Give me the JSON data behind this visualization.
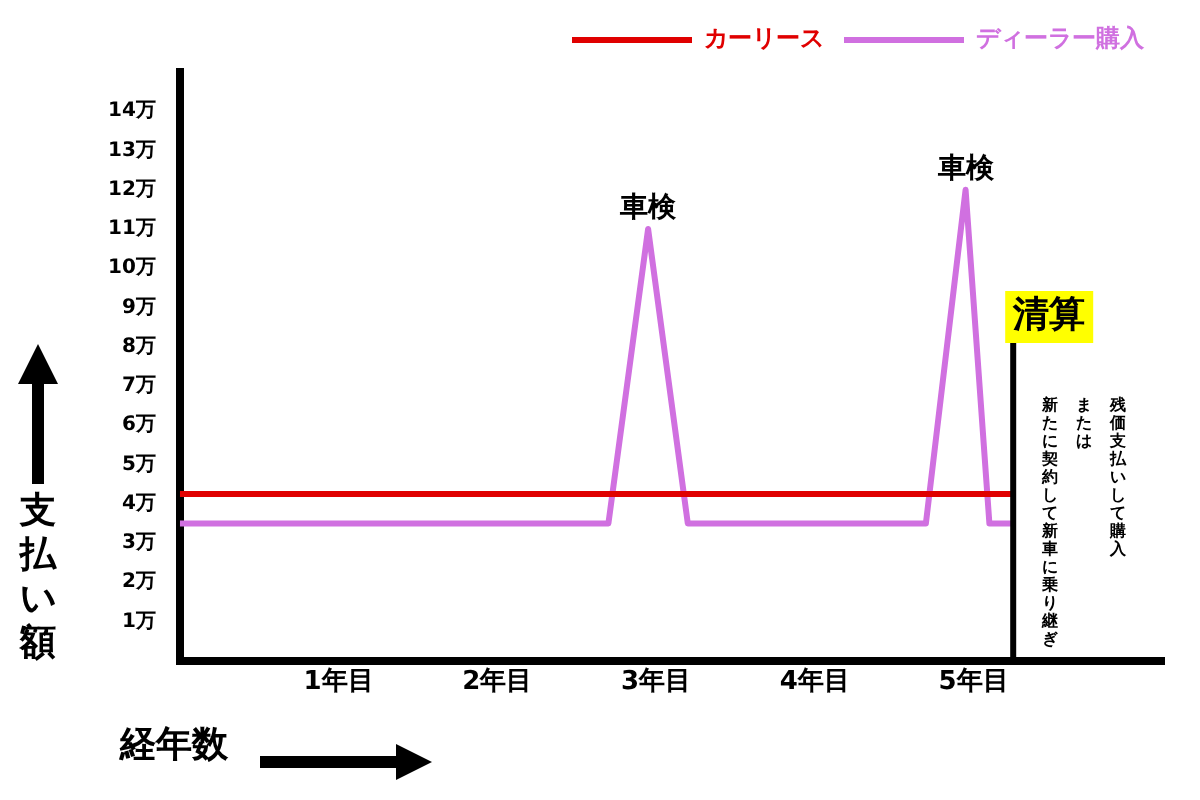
{
  "chart_data": {
    "type": "line",
    "xlabel": "経年数",
    "ylabel": "支払い額",
    "x": [
      0,
      5.25
    ],
    "series": [
      {
        "name": "カーリース",
        "color": "#e00000",
        "values": [
          4.25,
          4.25
        ]
      },
      {
        "name": "ディーラー購入",
        "color": "#d070e0",
        "x": [
          0,
          2.7,
          2.95,
          3.2,
          4.7,
          4.95,
          5.1,
          5.25
        ],
        "values": [
          3.5,
          3.5,
          11,
          3.5,
          3.5,
          12,
          3.5,
          3.5
        ]
      }
    ],
    "xlim": [
      0,
      6.2
    ],
    "xticks": [
      {
        "value": 1,
        "label": "1年目"
      },
      {
        "value": 2,
        "label": "2年目"
      },
      {
        "value": 3,
        "label": "3年目"
      },
      {
        "value": 4,
        "label": "4年目"
      },
      {
        "value": 5,
        "label": "5年目"
      }
    ],
    "ylim": [
      0,
      15
    ],
    "yticks": [
      {
        "value": 1,
        "label": "1万"
      },
      {
        "value": 2,
        "label": "2万"
      },
      {
        "value": 3,
        "label": "3万"
      },
      {
        "value": 4,
        "label": "4万"
      },
      {
        "value": 5,
        "label": "5万"
      },
      {
        "value": 6,
        "label": "6万"
      },
      {
        "value": 7,
        "label": "7万"
      },
      {
        "value": 8,
        "label": "8万"
      },
      {
        "value": 9,
        "label": "9万"
      },
      {
        "value": 10,
        "label": "10万"
      },
      {
        "value": 11,
        "label": "11万"
      },
      {
        "value": 12,
        "label": "12万"
      },
      {
        "value": 13,
        "label": "13万"
      },
      {
        "value": 14,
        "label": "14万"
      }
    ],
    "ref_lines": [
      {
        "axis": "x",
        "value": 5.25,
        "label": "清算",
        "color": "#000000"
      }
    ],
    "annotations": [
      {
        "text": "車検",
        "x": 2.95,
        "y": 11
      },
      {
        "text": "車検",
        "x": 4.95,
        "y": 12
      },
      "残価支払いして購入",
      "または",
      "新たに契約して新車に乗り継ぎ"
    ],
    "grid": false,
    "legend": "top right",
    "marker": "none",
    "line_style": "solid"
  }
}
